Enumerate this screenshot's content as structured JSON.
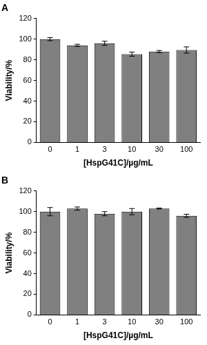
{
  "chart_data": [
    {
      "type": "bar",
      "title": "A",
      "x_label": "[HspG41C]/µg/mL",
      "y_label": "Viability/%",
      "categories": [
        "0",
        "1",
        "3",
        "10",
        "30",
        "100"
      ],
      "values": [
        100,
        94,
        96,
        85.5,
        88,
        89.5
      ],
      "errors": [
        1.5,
        1,
        2,
        2,
        1,
        3
      ],
      "color": "#808080",
      "ylim": [
        0,
        120
      ],
      "yticks": [
        0,
        20,
        40,
        60,
        80,
        100,
        120
      ],
      "grid": false
    },
    {
      "type": "bar",
      "title": "B",
      "x_label": "[HspG41C]/µg/mL",
      "y_label": "Viability/%",
      "categories": [
        "0",
        "1",
        "3",
        "10",
        "30",
        "100"
      ],
      "values": [
        100,
        103,
        98,
        100,
        103,
        96
      ],
      "errors": [
        4,
        1.5,
        2,
        3,
        0.5,
        1.5
      ],
      "color": "#808080",
      "ylim": [
        0,
        120
      ],
      "yticks": [
        0,
        20,
        40,
        60,
        80,
        100,
        120
      ],
      "grid": false
    }
  ]
}
